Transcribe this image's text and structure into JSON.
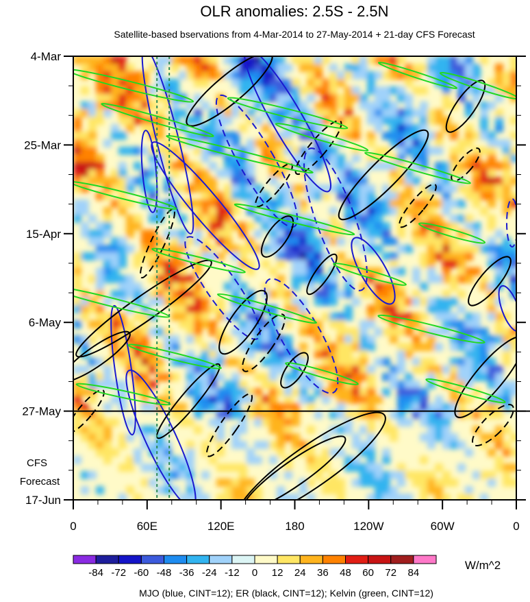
{
  "chart_data": {
    "type": "heatmap",
    "title": "OLR anomalies: 2.5S - 2.5N",
    "subtitle": "Satellite-based bservations from 4-Mar-2014 to 27-May-2014 + 21-day CFS Forecast",
    "x_ticks": [
      "0",
      "60E",
      "120E",
      "180",
      "120W",
      "60W",
      "0"
    ],
    "x_tick_lon": [
      0,
      60,
      120,
      180,
      240,
      300,
      360
    ],
    "y_ticks": [
      "4-Mar",
      "25-Mar",
      "15-Apr",
      "6-May",
      "27-May",
      "17-Jun"
    ],
    "y_tick_day": [
      0,
      21,
      42,
      63,
      84,
      105
    ],
    "forecast_label": [
      "CFS",
      "Forecast"
    ],
    "forecast_start_day": 84,
    "xlim": [
      0,
      360
    ],
    "ylim_days": [
      0,
      105
    ],
    "colorbar": {
      "units": "W/m^2",
      "labels": [
        "-84",
        "-72",
        "-60",
        "-48",
        "-36",
        "-24",
        "-12",
        "0",
        "12",
        "24",
        "36",
        "48",
        "60",
        "72",
        "84"
      ],
      "colors": [
        "#8a2be2",
        "#1e1e9c",
        "#1414c8",
        "#3c5adc",
        "#1e8cf0",
        "#32b4f0",
        "#a0d2fa",
        "#dcf5f5",
        "#fffac8",
        "#ffe664",
        "#ffb41e",
        "#ff8200",
        "#e11e14",
        "#c81414",
        "#a01e1e",
        "#ff78c8"
      ]
    },
    "footer": "MJO (blue, CINT=12); ER (black, CINT=12); Kelvin (green, CINT=12)",
    "colors": {
      "mjo": "#1a1ad0",
      "er": "#000000",
      "kelvin": "#22d822",
      "marker": "#2e8b57"
    }
  }
}
